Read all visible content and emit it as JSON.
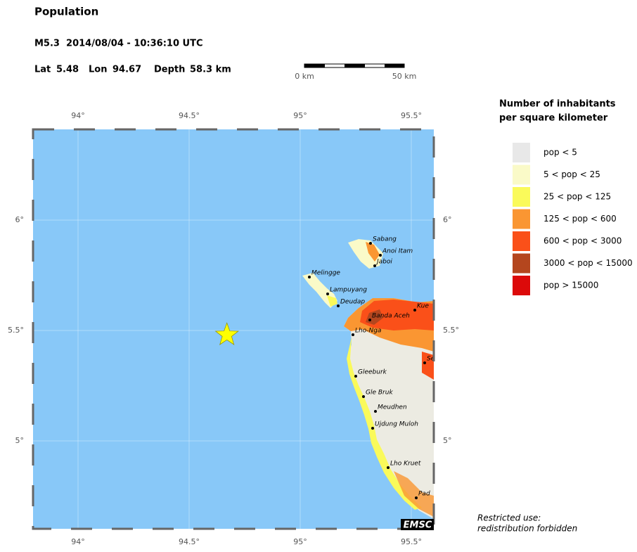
{
  "header": {
    "title": "Population",
    "event": "M5.3  2014/08/04 - 10:36:10 UTC",
    "lat_label": "Lat",
    "lat": 5.48,
    "lon_label": "Lon",
    "lon": 94.67,
    "depth_label": "Depth",
    "depth": "58.3 km"
  },
  "scale_bar": {
    "start": "0 km",
    "end": "50 km"
  },
  "map": {
    "lon_ticks": [
      {
        "value": 94,
        "label": "94°"
      },
      {
        "value": 94.5,
        "label": "94.5°"
      },
      {
        "value": 95,
        "label": "95°"
      },
      {
        "value": 95.5,
        "label": "95.5°"
      }
    ],
    "lat_ticks": [
      {
        "value": 6,
        "label": "6°"
      },
      {
        "value": 5.5,
        "label": "5.5°"
      },
      {
        "value": 5,
        "label": "5°"
      }
    ],
    "cities": [
      "Sabang",
      "Anoi Itam",
      "Jaboi",
      "Melingge",
      "Lampuyang",
      "Deudap",
      "Banda Aceh",
      "Kue",
      "Lho-Nga",
      "Se",
      "Gleeburk",
      "Gle Bruk",
      "Meudhen",
      "Ujdung Muloh",
      "Lho Kruet",
      "Pad"
    ],
    "logo": "EMSC"
  },
  "legend": {
    "title": [
      "Number of inhabitants",
      "per square kilometer"
    ],
    "items": [
      {
        "label": "pop < 5",
        "color": "#e8e8e8"
      },
      {
        "label": "5 < pop < 25",
        "color": "#fafac8"
      },
      {
        "label": "25 < pop < 125",
        "color": "#fafa5a"
      },
      {
        "label": "125 < pop < 600",
        "color": "#fa9632"
      },
      {
        "label": "600 < pop < 3000",
        "color": "#fa5019"
      },
      {
        "label": "3000 < pop < 15000",
        "color": "#b4461e"
      },
      {
        "label": "pop > 15000",
        "color": "#dc0a0a"
      }
    ]
  },
  "footer": [
    "Restricted use:",
    "redistribution forbidden"
  ]
}
